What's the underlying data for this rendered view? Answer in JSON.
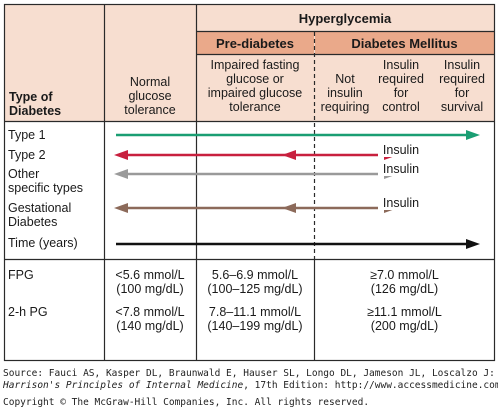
{
  "header": {
    "type_of_diabetes": [
      "Type of",
      "Diabetes"
    ],
    "normal": [
      "Normal",
      "glucose",
      "tolerance"
    ],
    "hyperglycemia": "Hyperglycemia",
    "prediabetes": "Pre-diabetes",
    "diabetes_mellitus": "Diabetes Mellitus",
    "impaired": [
      "Impaired fasting",
      "glucose or",
      "impaired glucose",
      "tolerance"
    ],
    "not_insulin": [
      "Not",
      "insulin",
      "requiring"
    ],
    "insulin_control": [
      "Insulin",
      "required",
      "for",
      "control"
    ],
    "insulin_survival": [
      "Insulin",
      "required",
      "for",
      "survival"
    ]
  },
  "rows": [
    {
      "label": [
        "Type 1"
      ]
    },
    {
      "label": [
        "Type 2"
      ]
    },
    {
      "label": [
        "Other",
        "specific types"
      ]
    },
    {
      "label": [
        "Gestational",
        "Diabetes"
      ]
    },
    {
      "label": [
        "Time (years)"
      ]
    }
  ],
  "fpg": {
    "label": "FPG",
    "normal": [
      "<5.6 mmol/L",
      "(100 mg/dL)"
    ],
    "prediabetes": [
      "5.6–6.9 mmol/L",
      "(100–125 mg/dL)"
    ],
    "diabetes": [
      "≥7.0 mmol/L",
      "(126 mg/dL)"
    ]
  },
  "pg2h": {
    "label": "2-h PG",
    "normal": [
      "<7.8 mmol/L",
      "(140 mg/dL)"
    ],
    "prediabetes": [
      "7.8–11.1 mmol/L",
      "(140–199 mg/dL)"
    ],
    "diabetes": [
      "≥11.1 mmol/L",
      "(200 mg/dL)"
    ]
  },
  "arrows": {
    "type1": {
      "label": "Insulin",
      "show_label": false
    },
    "type2": {
      "label": "Insulin"
    },
    "other": {
      "label": "Insulin"
    },
    "gestational": {
      "label": "Insulin"
    }
  },
  "footer": {
    "line1": "Source: Fauci AS, Kasper DL, Braunwald E, Hauser SL, Longo DL, Jameson JL, Loscalzo J:",
    "line2_italic": "Harrison's Principles of Internal Medicine",
    "line2_rest": ", 17th Edition: http://www.accessmedicine.com",
    "line3": "Copyright © The McGraw-Hill Companies, Inc. All rights reserved."
  },
  "colors": {
    "header_fill": "#f7ded0",
    "header_strong": "#eaa98a",
    "grid": "#2a2a2a",
    "type1": "#1a9e73",
    "type2": "#c8203e",
    "other": "#9a9a9a",
    "gestational": "#8c6a5a",
    "time": "#111111"
  }
}
